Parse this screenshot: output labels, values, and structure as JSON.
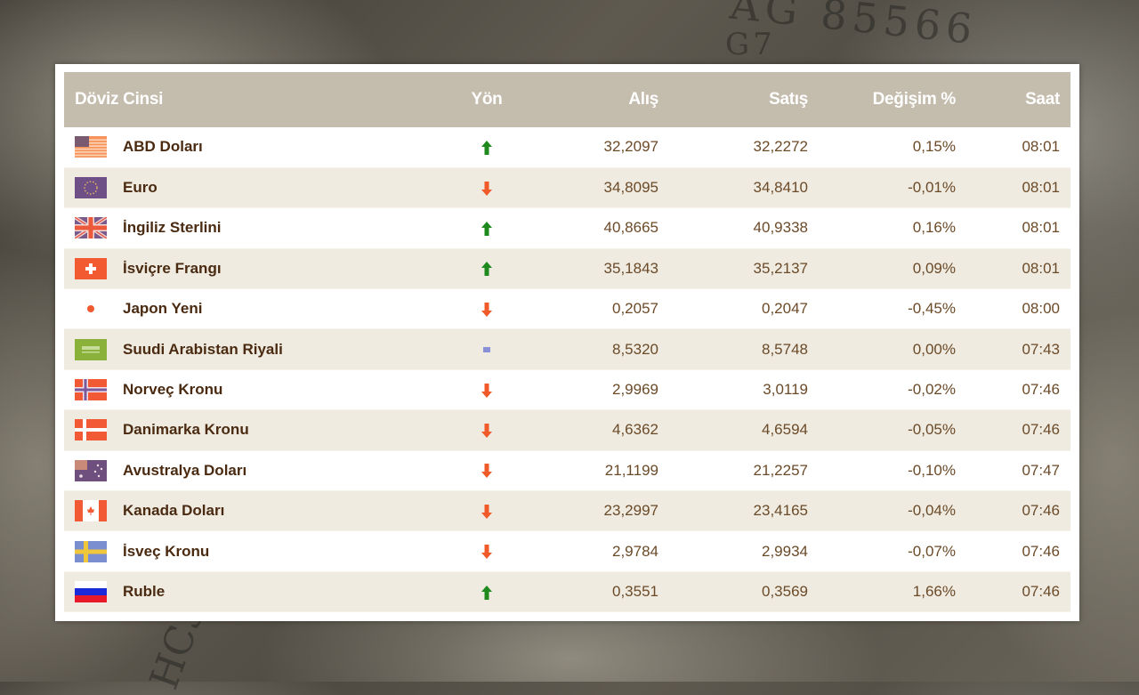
{
  "table": {
    "headers": {
      "currency": "Döviz Cinsi",
      "direction": "Yön",
      "buy": "Alış",
      "sell": "Satış",
      "change": "Değişim %",
      "time": "Saat"
    },
    "colors": {
      "header_bg": "#c4bcad",
      "row_alt_bg": "#efebe1",
      "up": "#1e8a1e",
      "down": "#f05a28",
      "flat": "#8a90d8",
      "text": "#5a3a18"
    },
    "rows": [
      {
        "flag": "us-flag-icon",
        "name": "ABD Doları",
        "direction": "up",
        "buy": "32,2097",
        "sell": "32,2272",
        "change": "0,15%",
        "time": "08:01"
      },
      {
        "flag": "eu-flag-icon",
        "name": "Euro",
        "direction": "down",
        "buy": "34,8095",
        "sell": "34,8410",
        "change": "-0,01%",
        "time": "08:01"
      },
      {
        "flag": "uk-flag-icon",
        "name": "İngiliz Sterlini",
        "direction": "up",
        "buy": "40,8665",
        "sell": "40,9338",
        "change": "0,16%",
        "time": "08:01"
      },
      {
        "flag": "ch-flag-icon",
        "name": "İsviçre Frangı",
        "direction": "up",
        "buy": "35,1843",
        "sell": "35,2137",
        "change": "0,09%",
        "time": "08:01"
      },
      {
        "flag": "jp-flag-icon",
        "name": "Japon Yeni",
        "direction": "down",
        "buy": "0,2057",
        "sell": "0,2047",
        "change": "-0,45%",
        "time": "08:00"
      },
      {
        "flag": "sa-flag-icon",
        "name": "Suudi Arabistan Riyali",
        "direction": "flat",
        "buy": "8,5320",
        "sell": "8,5748",
        "change": "0,00%",
        "time": "07:43"
      },
      {
        "flag": "no-flag-icon",
        "name": "Norveç Kronu",
        "direction": "down",
        "buy": "2,9969",
        "sell": "3,0119",
        "change": "-0,02%",
        "time": "07:46"
      },
      {
        "flag": "dk-flag-icon",
        "name": "Danimarka Kronu",
        "direction": "down",
        "buy": "4,6362",
        "sell": "4,6594",
        "change": "-0,05%",
        "time": "07:46"
      },
      {
        "flag": "au-flag-icon",
        "name": "Avustralya Doları",
        "direction": "down",
        "buy": "21,1199",
        "sell": "21,2257",
        "change": "-0,10%",
        "time": "07:47"
      },
      {
        "flag": "ca-flag-icon",
        "name": "Kanada Doları",
        "direction": "down",
        "buy": "23,2997",
        "sell": "23,4165",
        "change": "-0,04%",
        "time": "07:46"
      },
      {
        "flag": "se-flag-icon",
        "name": "İsveç Kronu",
        "direction": "down",
        "buy": "2,9784",
        "sell": "2,9934",
        "change": "-0,07%",
        "time": "07:46"
      },
      {
        "flag": "ru-flag-icon",
        "name": "Ruble",
        "direction": "up",
        "buy": "0,3551",
        "sell": "0,3569",
        "change": "1,66%",
        "time": "07:46"
      }
    ]
  }
}
